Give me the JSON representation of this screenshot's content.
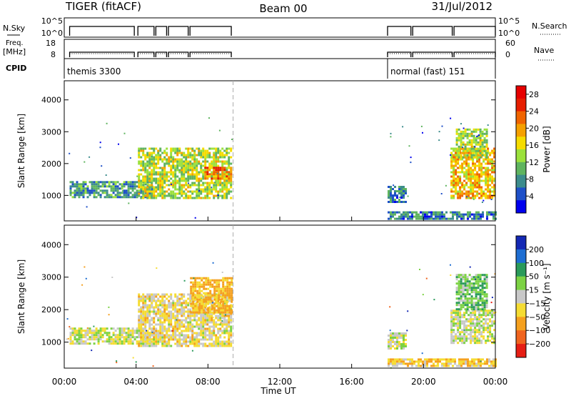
{
  "header": {
    "radar": "TIGER (fitACF)",
    "beam": "Beam 00",
    "date": "31/Jul/2012"
  },
  "status": {
    "nsky_label": "N.Sky",
    "nsearch_label": "N.Search",
    "freq_label_top": "Freq.",
    "freq_unit": "[MHz]",
    "nave_label": "Nave",
    "cpid_label": "CPID",
    "nsky_ticks": [
      "10^5",
      "10^0"
    ],
    "nsearch_ticks": [
      "10^5",
      "10^0"
    ],
    "freq_ticks": [
      "18",
      "8"
    ],
    "nave_ticks": [
      "60",
      "0"
    ],
    "cpid_blocks": [
      {
        "label": "themis 3300",
        "start": 0,
        "end": 9.4
      },
      {
        "label": "normal (fast) 151",
        "start": 18,
        "end": 24
      }
    ]
  },
  "colors": {
    "power": [
      "#0000ee",
      "#1e50c8",
      "#3c8c8c",
      "#5fb45f",
      "#9be13c",
      "#f5dc00",
      "#f5a000",
      "#f06400",
      "#e61e00",
      "#e60000"
    ],
    "velocity": [
      "#1428b4",
      "#1e6ed2",
      "#2a9a5a",
      "#7cd244",
      "#c8c8c8",
      "#f5dc32",
      "#f5a01e",
      "#f0641e",
      "#e61e14"
    ]
  },
  "chart_data": [
    {
      "type": "heatmap",
      "name": "power",
      "xlabel": "",
      "ylabel": "Slant Range [km]",
      "xlim": [
        0,
        24
      ],
      "ylim": [
        200,
        4600
      ],
      "yticks": [
        1000,
        2000,
        3000,
        4000
      ],
      "colorbar": {
        "label": "Power [dB]",
        "ticks": [
          "4",
          "8",
          "12",
          "16",
          "20",
          "24",
          "28"
        ],
        "range": [
          0,
          30
        ]
      },
      "regions": [
        {
          "x": [
            0.3,
            4.9
          ],
          "y": [
            950,
            1450
          ],
          "value": 9
        },
        {
          "x": [
            4.1,
            9.3
          ],
          "y": [
            900,
            2500
          ],
          "value": 14
        },
        {
          "x": [
            7.8,
            9.3
          ],
          "y": [
            1500,
            1900
          ],
          "value": 22
        },
        {
          "x": [
            18.0,
            24.0
          ],
          "y": [
            250,
            500
          ],
          "value": 7
        },
        {
          "x": [
            18.0,
            19.0
          ],
          "y": [
            800,
            1300
          ],
          "value": 7
        },
        {
          "x": [
            21.5,
            24.0
          ],
          "y": [
            950,
            2500
          ],
          "value": 18
        },
        {
          "x": [
            21.8,
            23.5
          ],
          "y": [
            2200,
            3100
          ],
          "value": 14
        }
      ]
    },
    {
      "type": "heatmap",
      "name": "velocity",
      "xlabel": "Time UT",
      "ylabel": "Slant Range [km]",
      "xlim": [
        0,
        24
      ],
      "ylim": [
        200,
        4600
      ],
      "yticks": [
        1000,
        2000,
        3000,
        4000
      ],
      "xticks": [
        "00:00",
        "04:00",
        "08:00",
        "12:00",
        "16:00",
        "20:00",
        "00:00"
      ],
      "colorbar": {
        "label": "Velocity [m s⁻¹]",
        "ticks": [
          "200",
          "100",
          "50",
          "15",
          "−15",
          "−50",
          "−100",
          "−200"
        ]
      },
      "regions": [
        {
          "x": [
            0.3,
            4.9
          ],
          "y": [
            950,
            1450
          ],
          "value": 0
        },
        {
          "x": [
            4.1,
            9.3
          ],
          "y": [
            900,
            2500
          ],
          "value": -20
        },
        {
          "x": [
            7.0,
            9.3
          ],
          "y": [
            1900,
            3000
          ],
          "value": -60
        },
        {
          "x": [
            18.0,
            24.0
          ],
          "y": [
            250,
            500
          ],
          "value": -40
        },
        {
          "x": [
            18.0,
            19.0
          ],
          "y": [
            800,
            1300
          ],
          "value": 0
        },
        {
          "x": [
            21.5,
            24.0
          ],
          "y": [
            950,
            2000
          ],
          "value": 0
        },
        {
          "x": [
            21.8,
            23.5
          ],
          "y": [
            2000,
            3100
          ],
          "value": 40
        }
      ]
    }
  ]
}
